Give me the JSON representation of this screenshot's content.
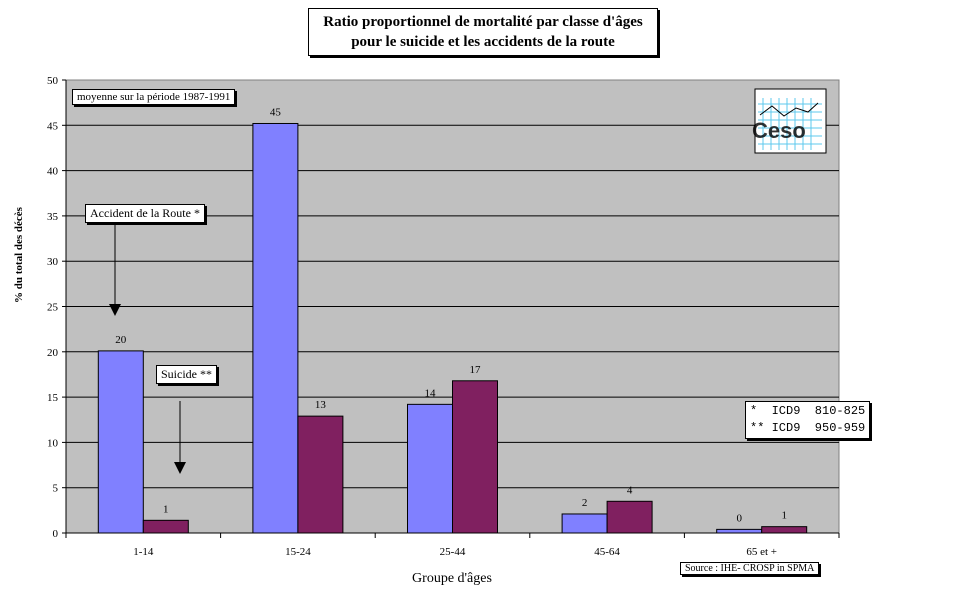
{
  "title_line1": "Ratio proportionnel de mortalité  par classe d'âges",
  "title_line2": "pour le suicide et les accidents de la route",
  "period_note": "moyenne sur la période 1987-1991",
  "annotations": {
    "road": "Accident de la Route *",
    "suicide": "Suicide  **"
  },
  "icd_notes": [
    "*  ICD9  810-825",
    "** ICD9  950-959"
  ],
  "source": "Source :  IHE- CROSP in SPMA",
  "logo_text": "Ceso",
  "colors": {
    "road": "#8080ff",
    "suicide": "#802060",
    "plot_bg": "#c0c0c0"
  },
  "chart_data": {
    "type": "bar",
    "categories": [
      "1-14",
      "15-24",
      "25-44",
      "45-64",
      "65 et +"
    ],
    "series": [
      {
        "key": "road",
        "values": [
          20.1,
          45.2,
          14.2,
          2.1,
          0.4
        ],
        "labels": [
          "20",
          "45",
          "14",
          "2",
          "0"
        ]
      },
      {
        "key": "suicide",
        "values": [
          1.4,
          12.9,
          16.8,
          3.5,
          0.7
        ],
        "labels": [
          "1",
          "13",
          "17",
          "4",
          "1"
        ]
      }
    ],
    "xlabel": "Groupe d'âges",
    "ylabel": "% du total des décès",
    "ylim": [
      0,
      50
    ],
    "yticks": [
      0,
      5,
      10,
      15,
      20,
      25,
      30,
      35,
      40,
      45,
      50
    ],
    "grid": true
  }
}
